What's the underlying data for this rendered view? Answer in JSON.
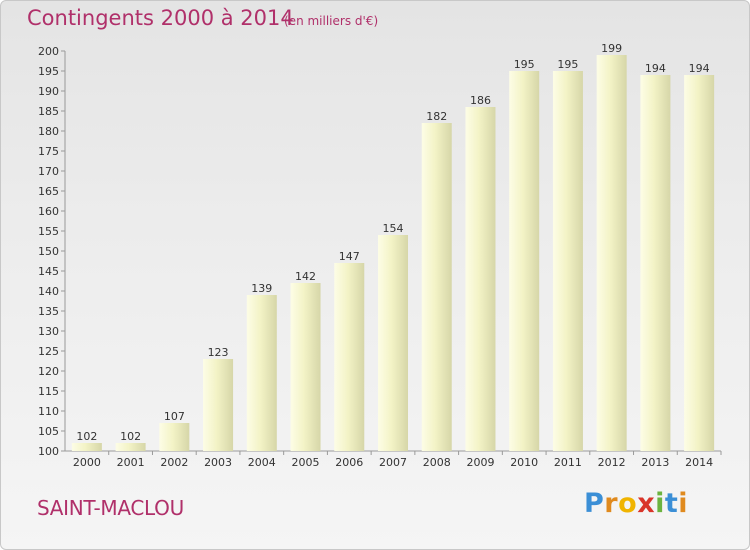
{
  "title": "Contingents 2000 à 2014",
  "subtitle": "(en milliers d'€)",
  "place": "SAINT-MACLOU",
  "logo": {
    "text": "Proxiti",
    "colors": [
      "#3b8fd6",
      "#e08a1e",
      "#f0b400",
      "#d9352a",
      "#6cb33f",
      "#3b8fd6",
      "#e08a1e"
    ]
  },
  "colors": {
    "accent": "#b0306a",
    "bar_light": "#fdfde6",
    "bar_dark": "#d8d8a8"
  },
  "chart_data": {
    "type": "bar",
    "title": "Contingents 2000 à 2014",
    "subtitle": "(en milliers d'€)",
    "categories": [
      "2000",
      "2001",
      "2002",
      "2003",
      "2004",
      "2005",
      "2006",
      "2007",
      "2008",
      "2009",
      "2010",
      "2011",
      "2012",
      "2013",
      "2014"
    ],
    "values": [
      102,
      102,
      107,
      123,
      139,
      142,
      147,
      154,
      182,
      186,
      195,
      195,
      199,
      194,
      194
    ],
    "ylim": [
      100,
      200
    ],
    "ytick_step": 5,
    "grid": false,
    "legend": "none"
  }
}
